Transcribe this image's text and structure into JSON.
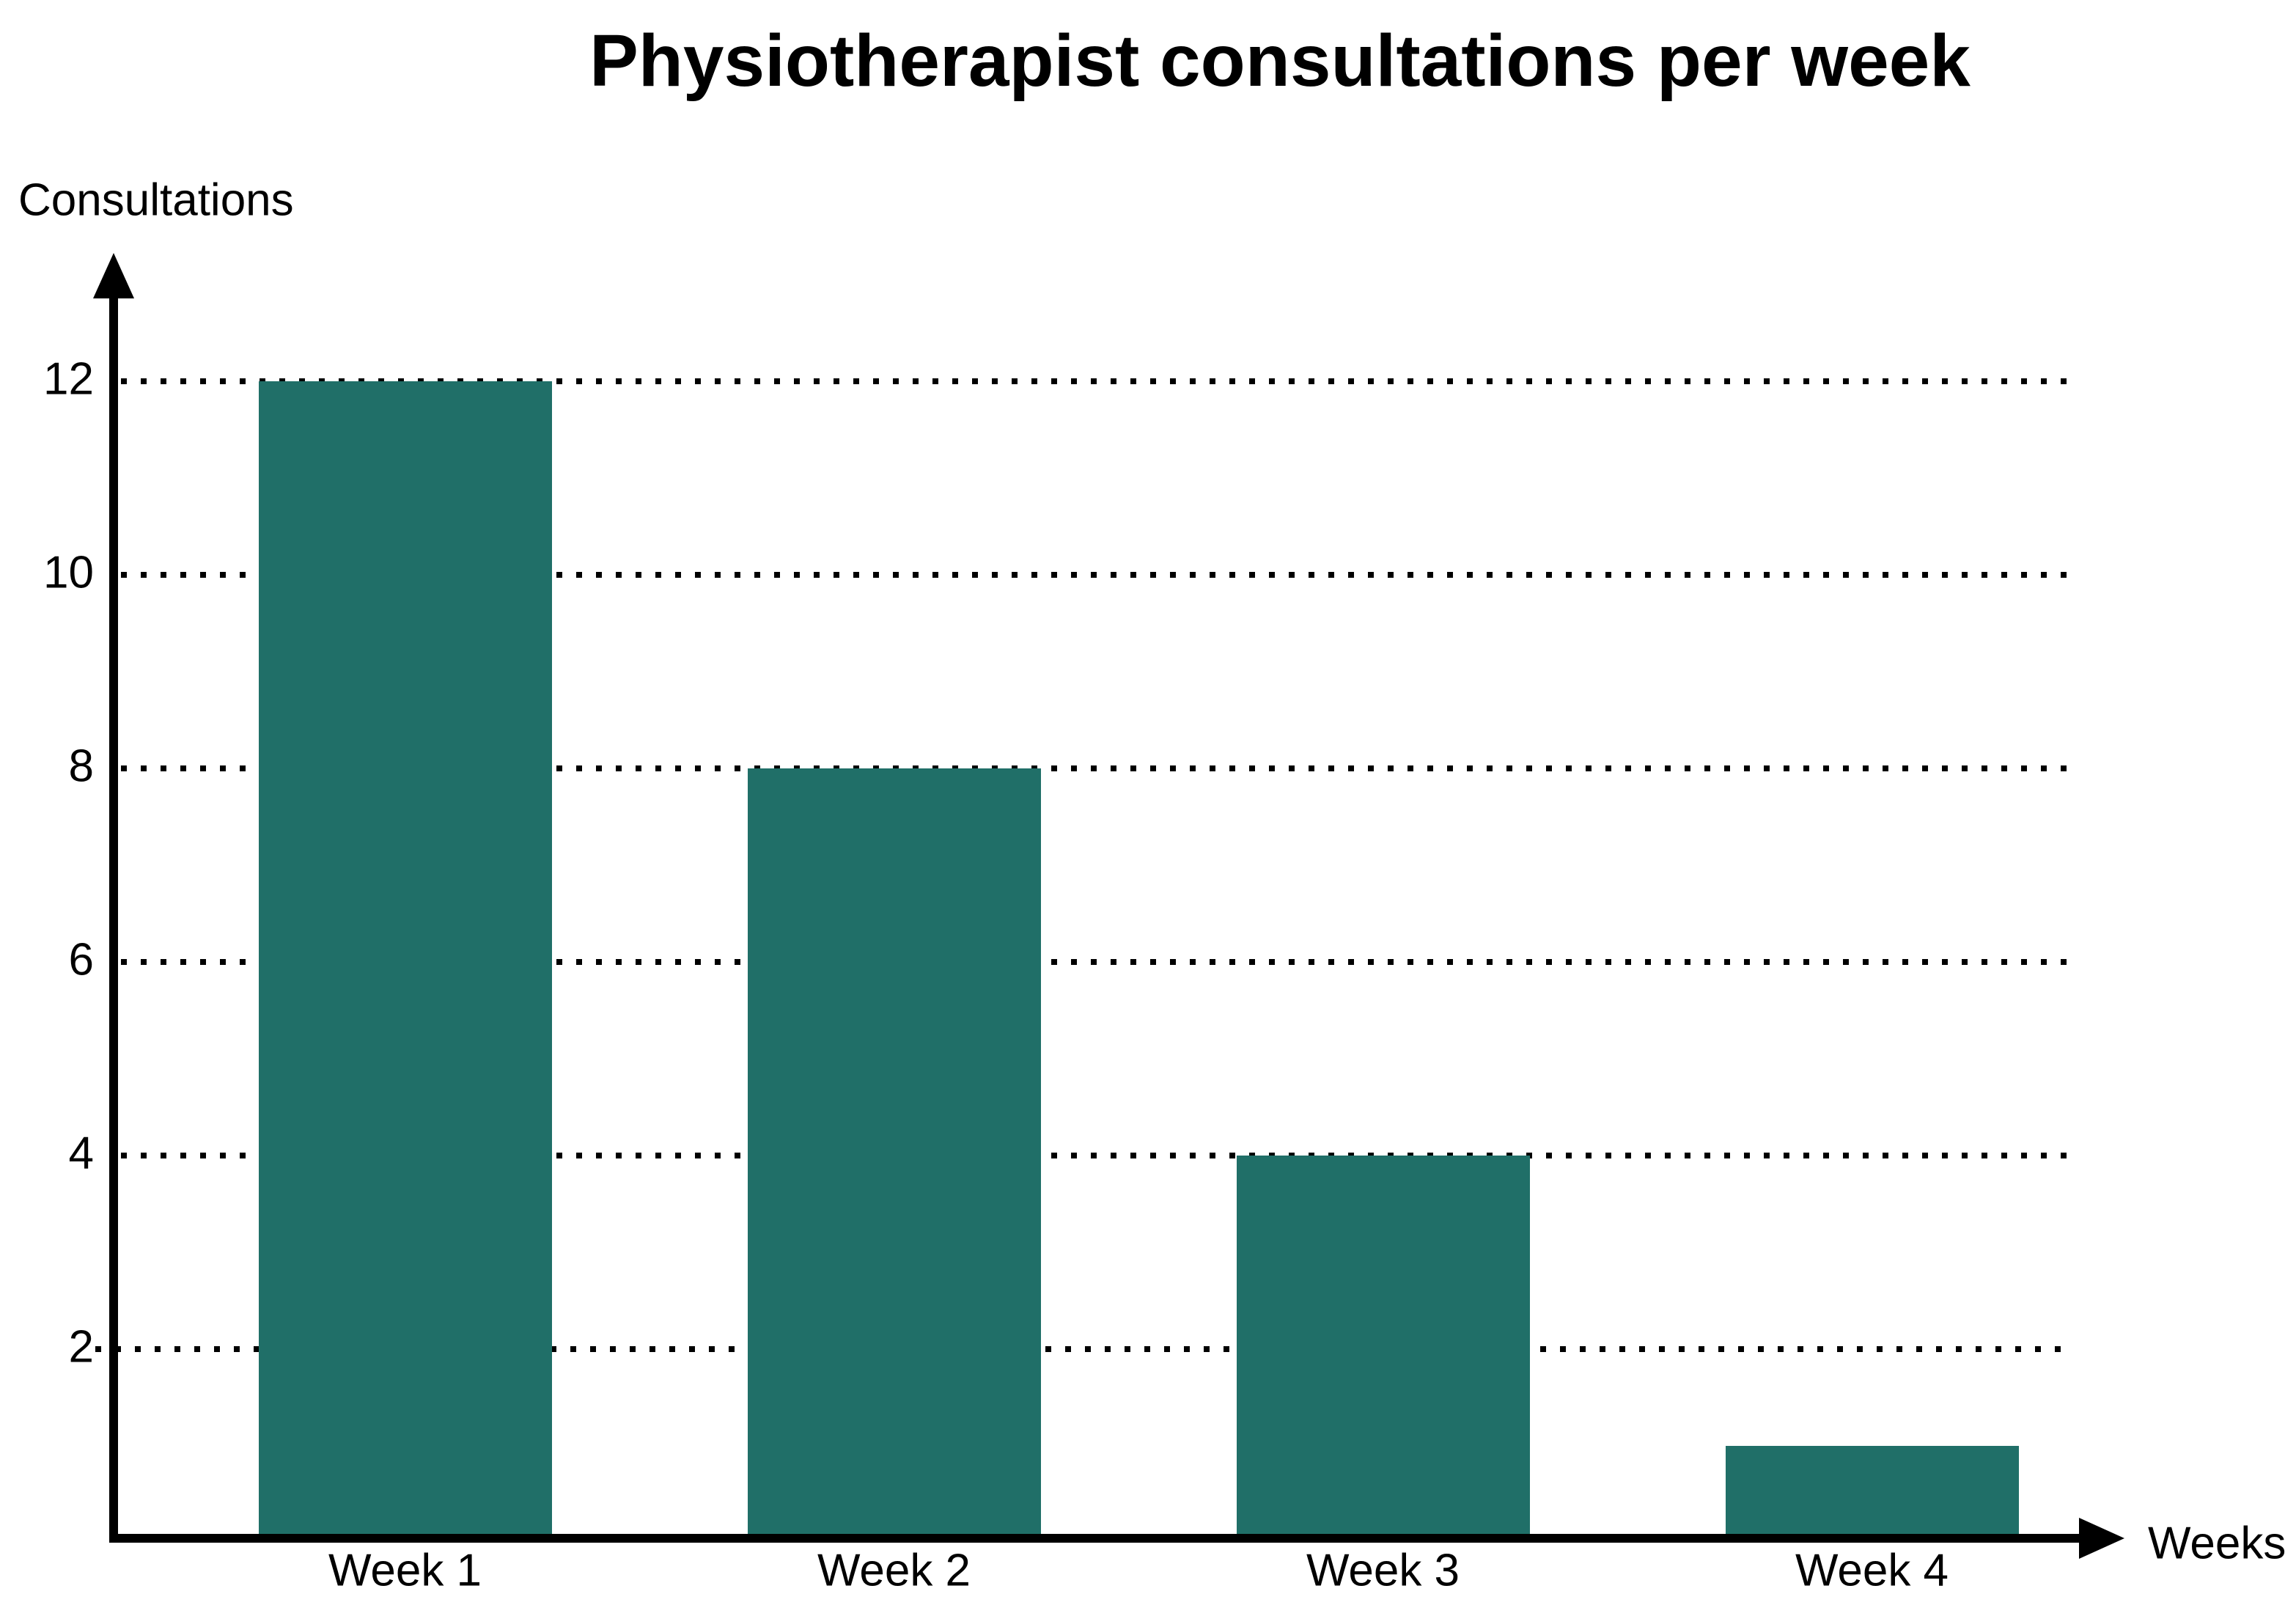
{
  "chart_data": {
    "type": "bar",
    "title": "Physiotherapist consultations per week",
    "ylabel": "Consultations",
    "xlabel": "Weeks",
    "categories": [
      "Week 1",
      "Week 2",
      "Week 3",
      "Week 4"
    ],
    "values": [
      12,
      8,
      4,
      1
    ],
    "yticks": [
      12,
      10,
      8,
      6,
      4,
      2
    ],
    "ylim": [
      0,
      13
    ],
    "grid": "horizontal-dotted",
    "legend": "none",
    "bar_color": "#206F68",
    "axis_color": "#000000",
    "text_color": "#000000",
    "background_color": "#FFFFFF"
  }
}
